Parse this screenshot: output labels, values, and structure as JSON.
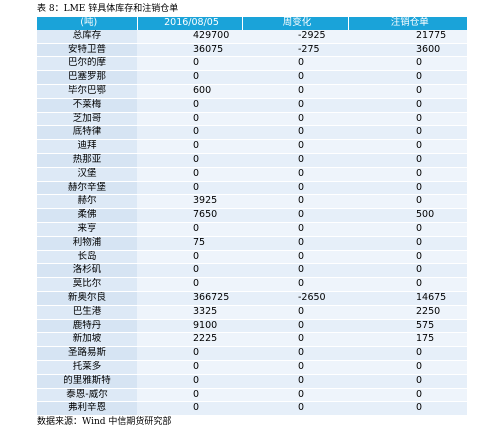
{
  "caption": "表 8：LME 锌具体库存和注销仓单",
  "source": "数据来源：Wind 中信期货研究部",
  "table": {
    "headers": [
      "(吨)",
      "2016/08/05",
      "周变化",
      "注销仓单"
    ],
    "rows": [
      {
        "name": "总库存",
        "stock": "429700",
        "change": "-2925",
        "cancelled": "21775"
      },
      {
        "name": "安特卫普",
        "stock": "36075",
        "change": "-275",
        "cancelled": "3600"
      },
      {
        "name": "巴尔的摩",
        "stock": "0",
        "change": "0",
        "cancelled": "0"
      },
      {
        "name": "巴塞罗那",
        "stock": "0",
        "change": "0",
        "cancelled": "0"
      },
      {
        "name": "毕尔巴鄂",
        "stock": "600",
        "change": "0",
        "cancelled": "0"
      },
      {
        "name": "不莱梅",
        "stock": "0",
        "change": "0",
        "cancelled": "0"
      },
      {
        "name": "芝加哥",
        "stock": "0",
        "change": "0",
        "cancelled": "0"
      },
      {
        "name": "底特律",
        "stock": "0",
        "change": "0",
        "cancelled": "0"
      },
      {
        "name": "迪拜",
        "stock": "0",
        "change": "0",
        "cancelled": "0"
      },
      {
        "name": "热那亚",
        "stock": "0",
        "change": "0",
        "cancelled": "0"
      },
      {
        "name": "汉堡",
        "stock": "0",
        "change": "0",
        "cancelled": "0"
      },
      {
        "name": "赫尔辛堡",
        "stock": "0",
        "change": "0",
        "cancelled": "0"
      },
      {
        "name": "赫尔",
        "stock": "3925",
        "change": "0",
        "cancelled": "0"
      },
      {
        "name": "柔佛",
        "stock": "7650",
        "change": "0",
        "cancelled": "500"
      },
      {
        "name": "来亨",
        "stock": "0",
        "change": "0",
        "cancelled": "0"
      },
      {
        "name": "利物浦",
        "stock": "75",
        "change": "0",
        "cancelled": "0"
      },
      {
        "name": "长岛",
        "stock": "0",
        "change": "0",
        "cancelled": "0"
      },
      {
        "name": "洛杉矶",
        "stock": "0",
        "change": "0",
        "cancelled": "0"
      },
      {
        "name": "莫比尔",
        "stock": "0",
        "change": "0",
        "cancelled": "0"
      },
      {
        "name": "新奥尔良",
        "stock": "366725",
        "change": "-2650",
        "cancelled": "14675"
      },
      {
        "name": "巴生港",
        "stock": "3325",
        "change": "0",
        "cancelled": "2250"
      },
      {
        "name": "鹿特丹",
        "stock": "9100",
        "change": "0",
        "cancelled": "575"
      },
      {
        "name": "新加坡",
        "stock": "2225",
        "change": "0",
        "cancelled": "175"
      },
      {
        "name": "圣路易斯",
        "stock": "0",
        "change": "0",
        "cancelled": "0"
      },
      {
        "name": "托莱多",
        "stock": "0",
        "change": "0",
        "cancelled": "0"
      },
      {
        "name": "的里雅斯特",
        "stock": "0",
        "change": "0",
        "cancelled": "0"
      },
      {
        "name": "泰恩-威尔",
        "stock": "0",
        "change": "0",
        "cancelled": "0"
      },
      {
        "name": "弗利辛恩",
        "stock": "0",
        "change": "0",
        "cancelled": "0"
      }
    ]
  }
}
